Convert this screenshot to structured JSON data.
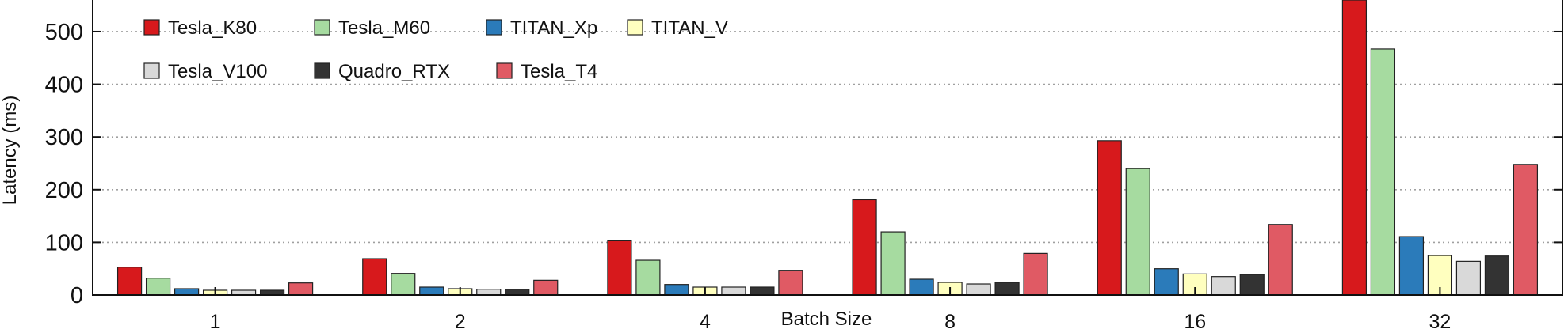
{
  "chart_data": {
    "type": "bar",
    "title": "",
    "xlabel": "Batch Size",
    "ylabel": "Latency (ms)",
    "ylim": [
      0,
      560
    ],
    "yticks": [
      0,
      100,
      200,
      300,
      400,
      500
    ],
    "grid": "horizontal-dotted",
    "legend_position": "top-left",
    "categories": [
      "1",
      "2",
      "4",
      "8",
      "16",
      "32"
    ],
    "series": [
      {
        "name": "Tesla_K80",
        "color": "#d7191c",
        "values": [
          53,
          69,
          103,
          181,
          293,
          560
        ]
      },
      {
        "name": "Tesla_M60",
        "color": "#a6dba0",
        "values": [
          32,
          41,
          66,
          120,
          240,
          467
        ]
      },
      {
        "name": "TITAN_Xp",
        "color": "#2b7bba",
        "values": [
          12,
          15,
          20,
          30,
          50,
          111
        ]
      },
      {
        "name": "TITAN_V",
        "color": "#ffffbf",
        "values": [
          9,
          12,
          15,
          24,
          40,
          75
        ]
      },
      {
        "name": "Tesla_V100",
        "color": "#d9d9d9",
        "values": [
          9,
          11,
          15,
          21,
          35,
          64
        ]
      },
      {
        "name": "Quadro_RTX",
        "color": "#333333",
        "values": [
          9,
          11,
          15,
          24,
          39,
          74
        ]
      },
      {
        "name": "Tesla_T4",
        "color": "#e05a64",
        "values": [
          23,
          28,
          47,
          79,
          134,
          248
        ]
      }
    ]
  }
}
